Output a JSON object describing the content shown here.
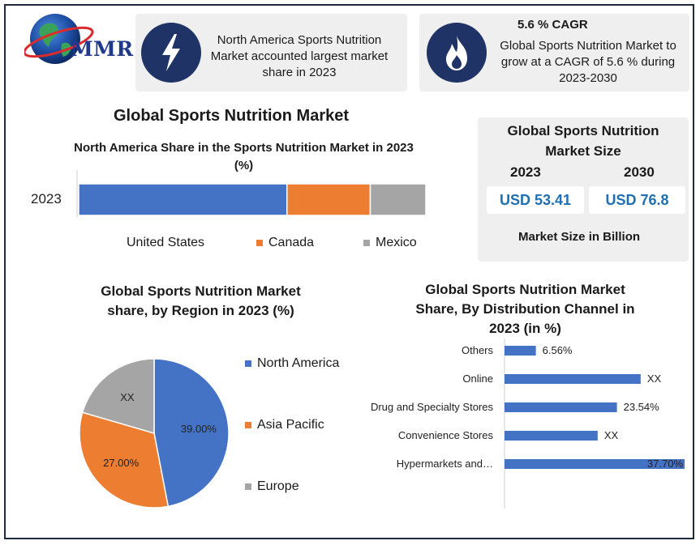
{
  "colors": {
    "blue": "#4472c4",
    "orange": "#ed7d31",
    "gray": "#a5a5a5",
    "navy": "#1f3366",
    "value_blue": "#1f6fb2"
  },
  "logo": {
    "text": "MMR"
  },
  "info_left": {
    "text": "North America Sports Nutrition Market accounted largest market share in 2023",
    "icon": "lightning-icon"
  },
  "info_right": {
    "title": "5.6 % CAGR",
    "text": "Global Sports Nutrition Market to grow at a CAGR of 5.6 % during 2023-2030",
    "icon": "flame-icon"
  },
  "market_size": {
    "title": "Global Sports Nutrition Market Size",
    "year1": "2023",
    "year2": "2030",
    "value1": "USD 53.41",
    "value2": "USD 76.8",
    "unit": "Market Size in Billion"
  },
  "main_title": "Global Sports Nutrition Market",
  "chart_data": [
    {
      "type": "bar",
      "orientation": "horizontal-stacked",
      "title": "North America Share in the Sports Nutrition Market in 2023 (%)",
      "categories": [
        "2023"
      ],
      "series": [
        {
          "name": "United States",
          "values": [
            60
          ],
          "color": "#4472c4"
        },
        {
          "name": "Canada",
          "values": [
            24
          ],
          "color": "#ed7d31"
        },
        {
          "name": "Mexico",
          "values": [
            16
          ],
          "color": "#a5a5a5"
        }
      ],
      "xlim": [
        0,
        100
      ],
      "legend": "bottom"
    },
    {
      "type": "pie",
      "title": "Global Sports Nutrition Market share, by Region in 2023  (%)",
      "slices": [
        {
          "name": "North America",
          "value": 39.0,
          "label": "39.00%",
          "color": "#4472c4"
        },
        {
          "name": "Asia Pacific",
          "value": 27.0,
          "label": "27.00%",
          "color": "#ed7d31"
        },
        {
          "name": "Europe",
          "value": 17.0,
          "label": "XX",
          "color": "#a5a5a5"
        }
      ],
      "legend": "right"
    },
    {
      "type": "bar",
      "orientation": "horizontal",
      "title": "Global Sports Nutrition Market Share, By Distribution Channel in 2023 (in %)",
      "categories": [
        "Others",
        "Online",
        "Drug and Specialty Stores",
        "Convenience Stores",
        "Hypermarkets and…"
      ],
      "values": [
        6.56,
        28.5,
        23.54,
        19.5,
        37.7
      ],
      "labels": [
        "6.56%",
        "XX",
        "23.54%",
        "XX",
        "37.70%"
      ],
      "color": "#4472c4",
      "xlim": [
        0,
        37.7
      ]
    }
  ]
}
